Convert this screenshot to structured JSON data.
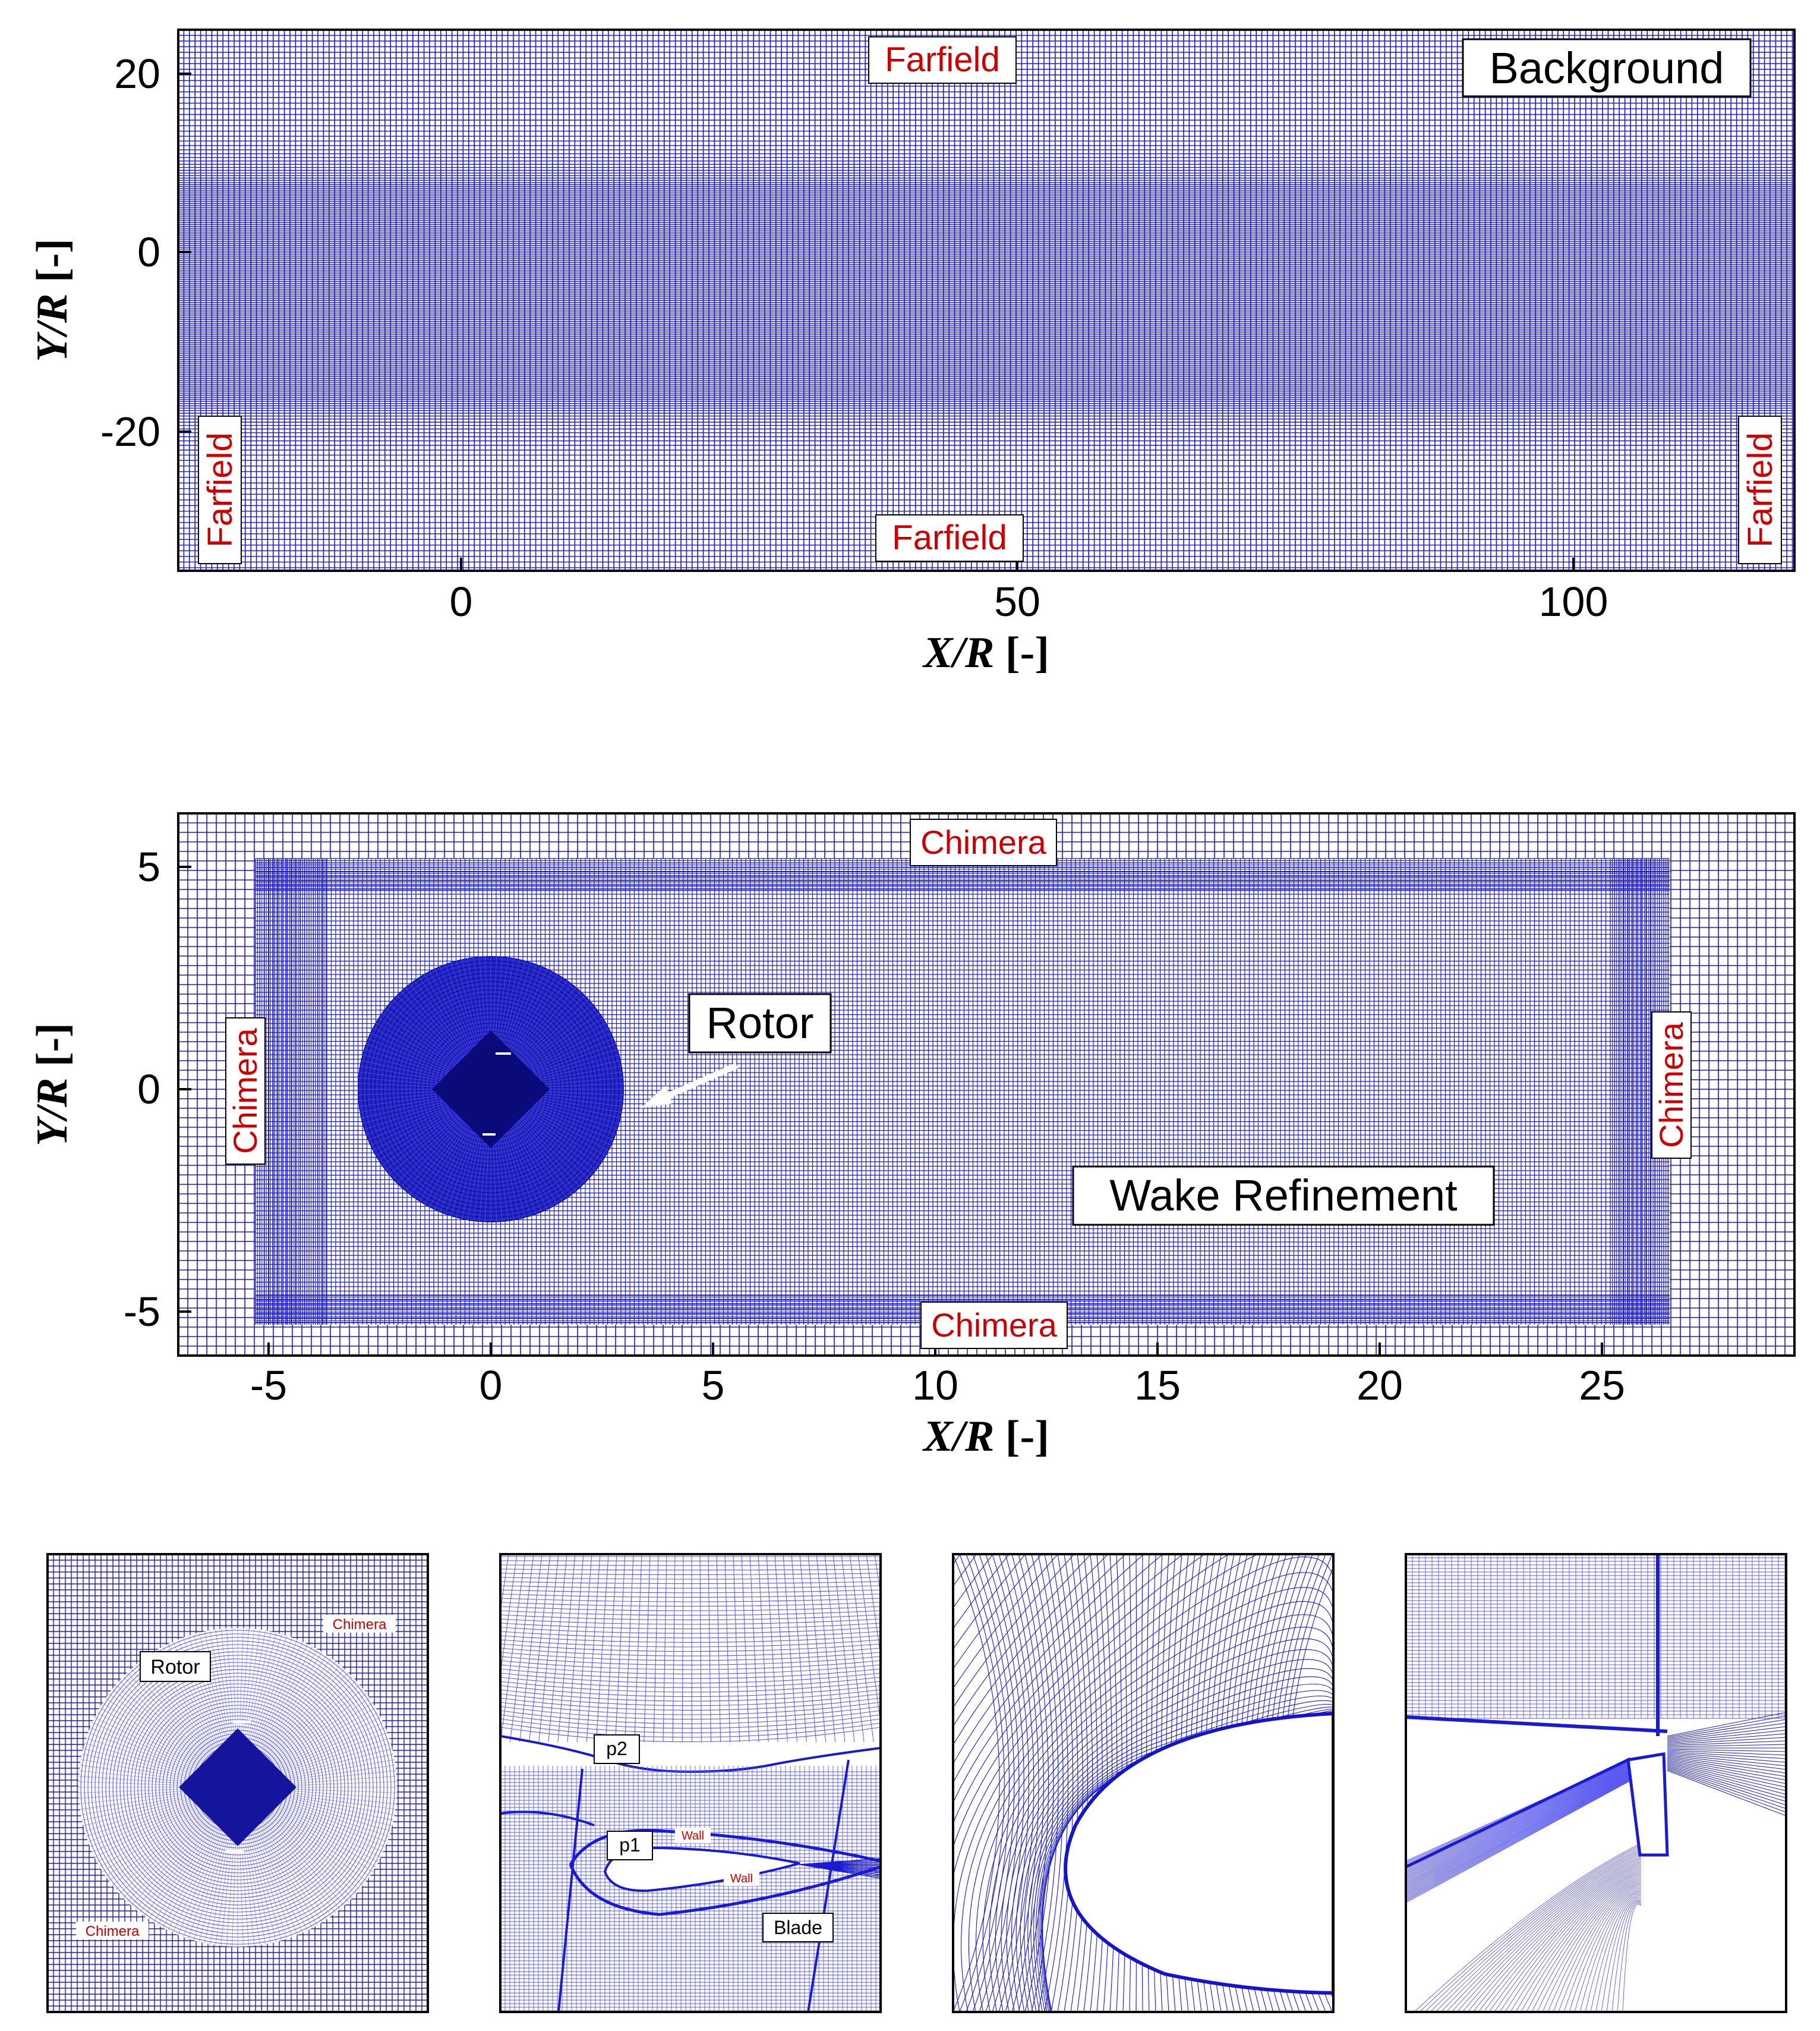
{
  "colors": {
    "mesh": "#1a1ad2",
    "mesh_dense": "#0e0e9a",
    "mesh_light": "#5a5af0",
    "label_red": "#cc0000",
    "frame": "#000000"
  },
  "panels": {
    "background": {
      "label": "Background",
      "x_ticks": [
        "0",
        "50",
        "100"
      ],
      "y_ticks": [
        "20",
        "0",
        "-20"
      ],
      "x_axis": {
        "italic": "X/R",
        "plain": " [-]"
      },
      "y_axis": {
        "italic": "Y/R",
        "plain": " [-]"
      },
      "farfield_top": "Farfield",
      "farfield_bottom": "Farfield",
      "farfield_left": "Farfield",
      "farfield_right": "Farfield"
    },
    "wake": {
      "label": "Wake Refinement",
      "rotor_label": "Rotor",
      "x_ticks": [
        "-5",
        "0",
        "5",
        "10",
        "15",
        "20",
        "25"
      ],
      "y_ticks": [
        "5",
        "0",
        "-5"
      ],
      "x_axis": {
        "italic": "X/R",
        "plain": " [-]"
      },
      "y_axis": {
        "italic": "Y/R",
        "plain": " [-]"
      },
      "chimera_top": "Chimera",
      "chimera_bottom": "Chimera",
      "chimera_left": "Chimera",
      "chimera_right": "Chimera"
    },
    "detail_rotor": {
      "rotor_label": "Rotor",
      "chimera_top": "Chimera",
      "chimera_bottom": "Chimera"
    },
    "detail_blade": {
      "p2": "p2",
      "p1": "p1",
      "wall_a": "Wall",
      "wall_b": "Wall",
      "blade": "Blade"
    }
  }
}
